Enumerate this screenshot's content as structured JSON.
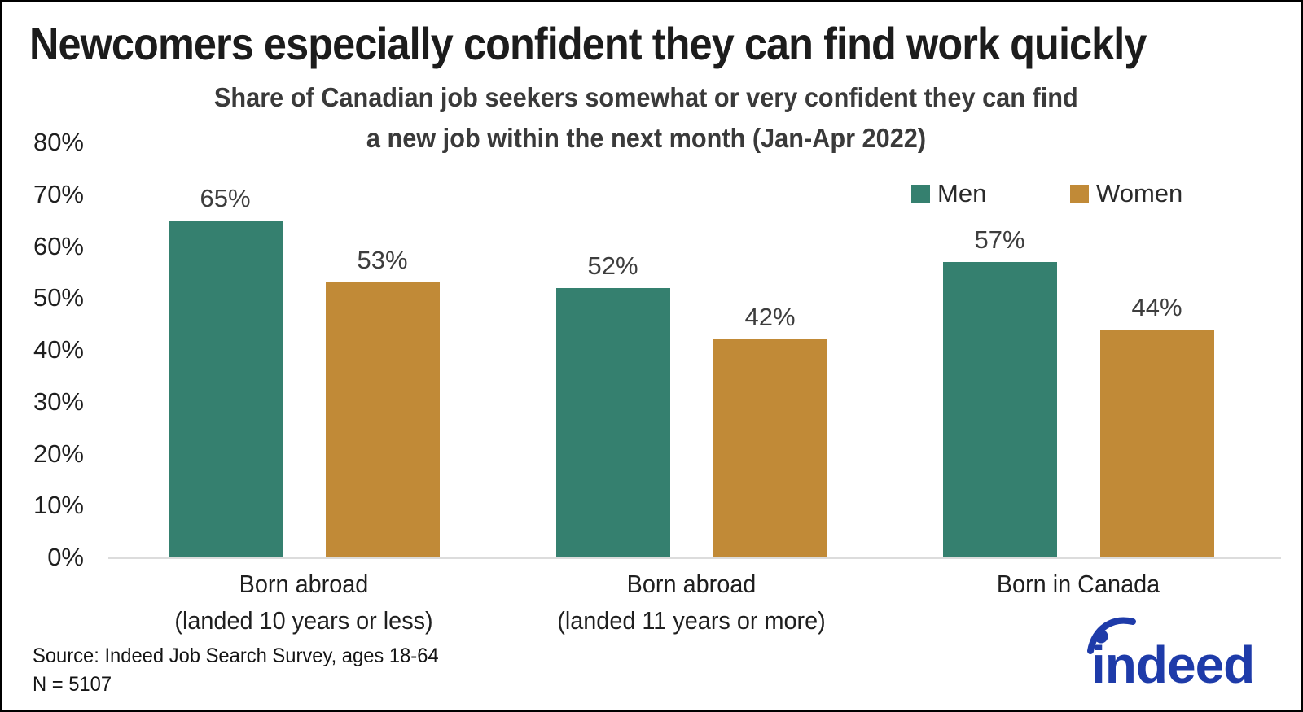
{
  "chart_data": {
    "type": "bar",
    "title": "Newcomers especially confident they can find work quickly",
    "subtitle": [
      "Share of Canadian job seekers somewhat or very confident they can find",
      "a new job within the next month (Jan-Apr 2022)"
    ],
    "categories": [
      [
        "Born abroad",
        "(landed 10 years or less)"
      ],
      [
        "Born abroad",
        "(landed 11 years or more)"
      ],
      [
        "Born in Canada"
      ]
    ],
    "series": [
      {
        "name": "Men",
        "color": "#35806F",
        "values": [
          65,
          52,
          57
        ]
      },
      {
        "name": "Women",
        "color": "#C18A37",
        "values": [
          53,
          42,
          44
        ]
      }
    ],
    "ylim": [
      0,
      80
    ],
    "y_tick_step": 10,
    "y_tick_suffix": "%",
    "value_label_suffix": "%",
    "grid": false,
    "legend_position": "top-right",
    "axis_line_color": "#dcdcdc"
  },
  "footer": {
    "source": "Source: Indeed Job Search Survey, ages 18-64",
    "sample": "N = 5107"
  },
  "logo": {
    "text": "indeed",
    "color": "#1E3BA9"
  }
}
